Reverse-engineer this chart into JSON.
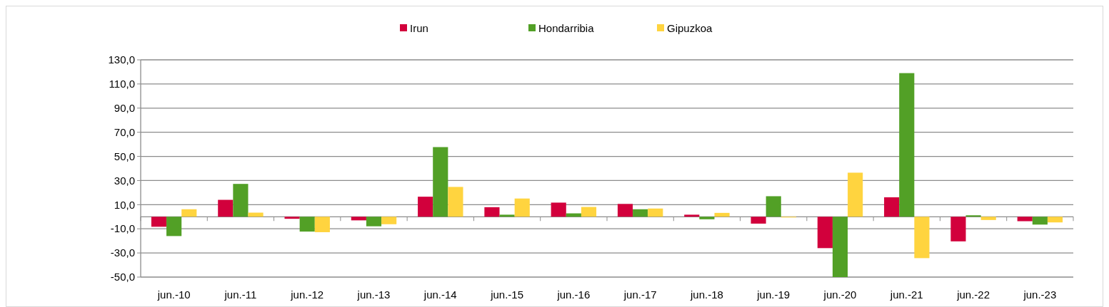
{
  "chart_data": {
    "type": "bar",
    "categories": [
      "jun.-10",
      "jun.-11",
      "jun.-12",
      "jun.-13",
      "jun.-14",
      "jun.-15",
      "jun.-16",
      "jun.-17",
      "jun.-18",
      "jun.-19",
      "jun.-20",
      "jun.-21",
      "jun.-22",
      "jun.-23"
    ],
    "series": [
      {
        "name": "Irun",
        "color": "#d2003c",
        "values": [
          -8.3,
          14,
          -1.7,
          -3,
          16.6,
          7.9,
          11.7,
          10.6,
          1.7,
          -5.7,
          -26,
          16.1,
          -20.4,
          -3.7
        ]
      },
      {
        "name": "Hondarribia",
        "color": "#52a026",
        "values": [
          -16,
          27.2,
          -12.3,
          -7.9,
          57.7,
          1.7,
          2.8,
          6.2,
          -2.1,
          17,
          -50,
          119,
          1.2,
          -6.5
        ]
      },
      {
        "name": "Gipuzkoa",
        "color": "#ffd43f",
        "values": [
          6.2,
          3.4,
          -12.8,
          -6.2,
          24.7,
          15.1,
          8.1,
          6.8,
          3.2,
          -0.6,
          36.5,
          -34.3,
          -2.7,
          -4.7
        ]
      }
    ],
    "ylim": [
      -50,
      130
    ],
    "yticks": [
      {
        "value": -50,
        "label": "-50,0"
      },
      {
        "value": -30,
        "label": "-30,0"
      },
      {
        "value": -10,
        "label": "-10,0"
      },
      {
        "value": 10,
        "label": "10,0"
      },
      {
        "value": 30,
        "label": "30,0"
      },
      {
        "value": 50,
        "label": "50,0"
      },
      {
        "value": 70,
        "label": "70,0"
      },
      {
        "value": 90,
        "label": "90,0"
      },
      {
        "value": 110,
        "label": "110,0"
      },
      {
        "value": 130,
        "label": "130,0"
      }
    ],
    "grid": "y",
    "legend": "top"
  }
}
